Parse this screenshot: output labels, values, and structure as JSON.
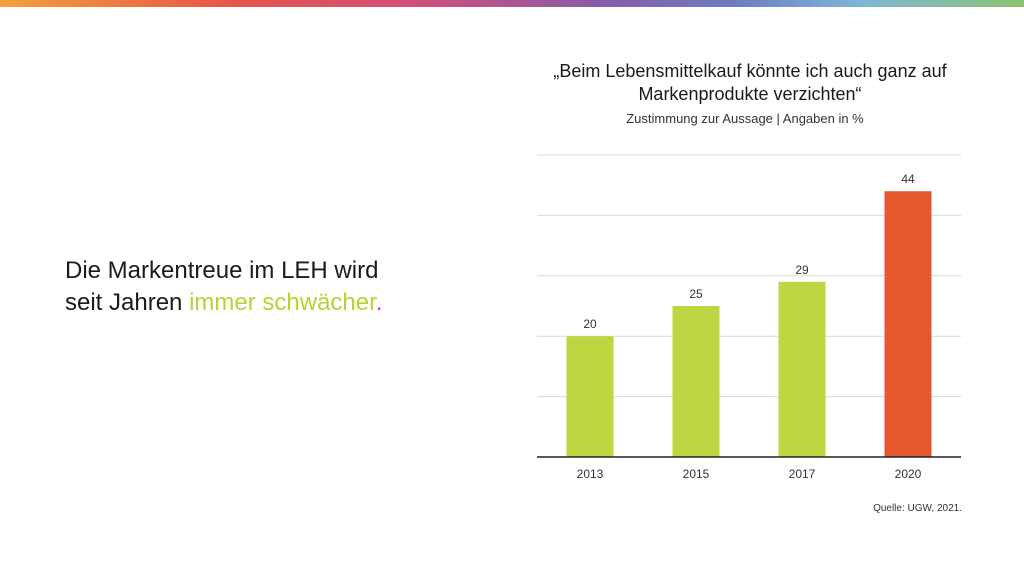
{
  "slide": {
    "headline_line1": "Die Markentreue im LEH wird",
    "headline_line2_prefix": "seit Jahren ",
    "headline_highlight": "immer schwächer",
    "headline_dot": ".",
    "source": "Quelle: UGW, 2021."
  },
  "colors": {
    "accent_green": "#bdd642",
    "accent_orange": "#e5572d",
    "highlight_text": "#b7d334",
    "dot": "#d33a9a"
  },
  "chart_data": {
    "type": "bar",
    "title": "„Beim Lebensmittelkauf könnte ich auch ganz auf Markenprodukte verzichten“",
    "subtitle": "Zustimmung zur Aussage | Angaben in %",
    "categories": [
      "2013",
      "2015",
      "2017",
      "2020"
    ],
    "values": [
      20,
      25,
      29,
      44
    ],
    "bar_colors": [
      "#bdd642",
      "#bdd642",
      "#bdd642",
      "#e5572d"
    ],
    "ylim": [
      0,
      50
    ],
    "grid": true,
    "data_labels": true
  }
}
